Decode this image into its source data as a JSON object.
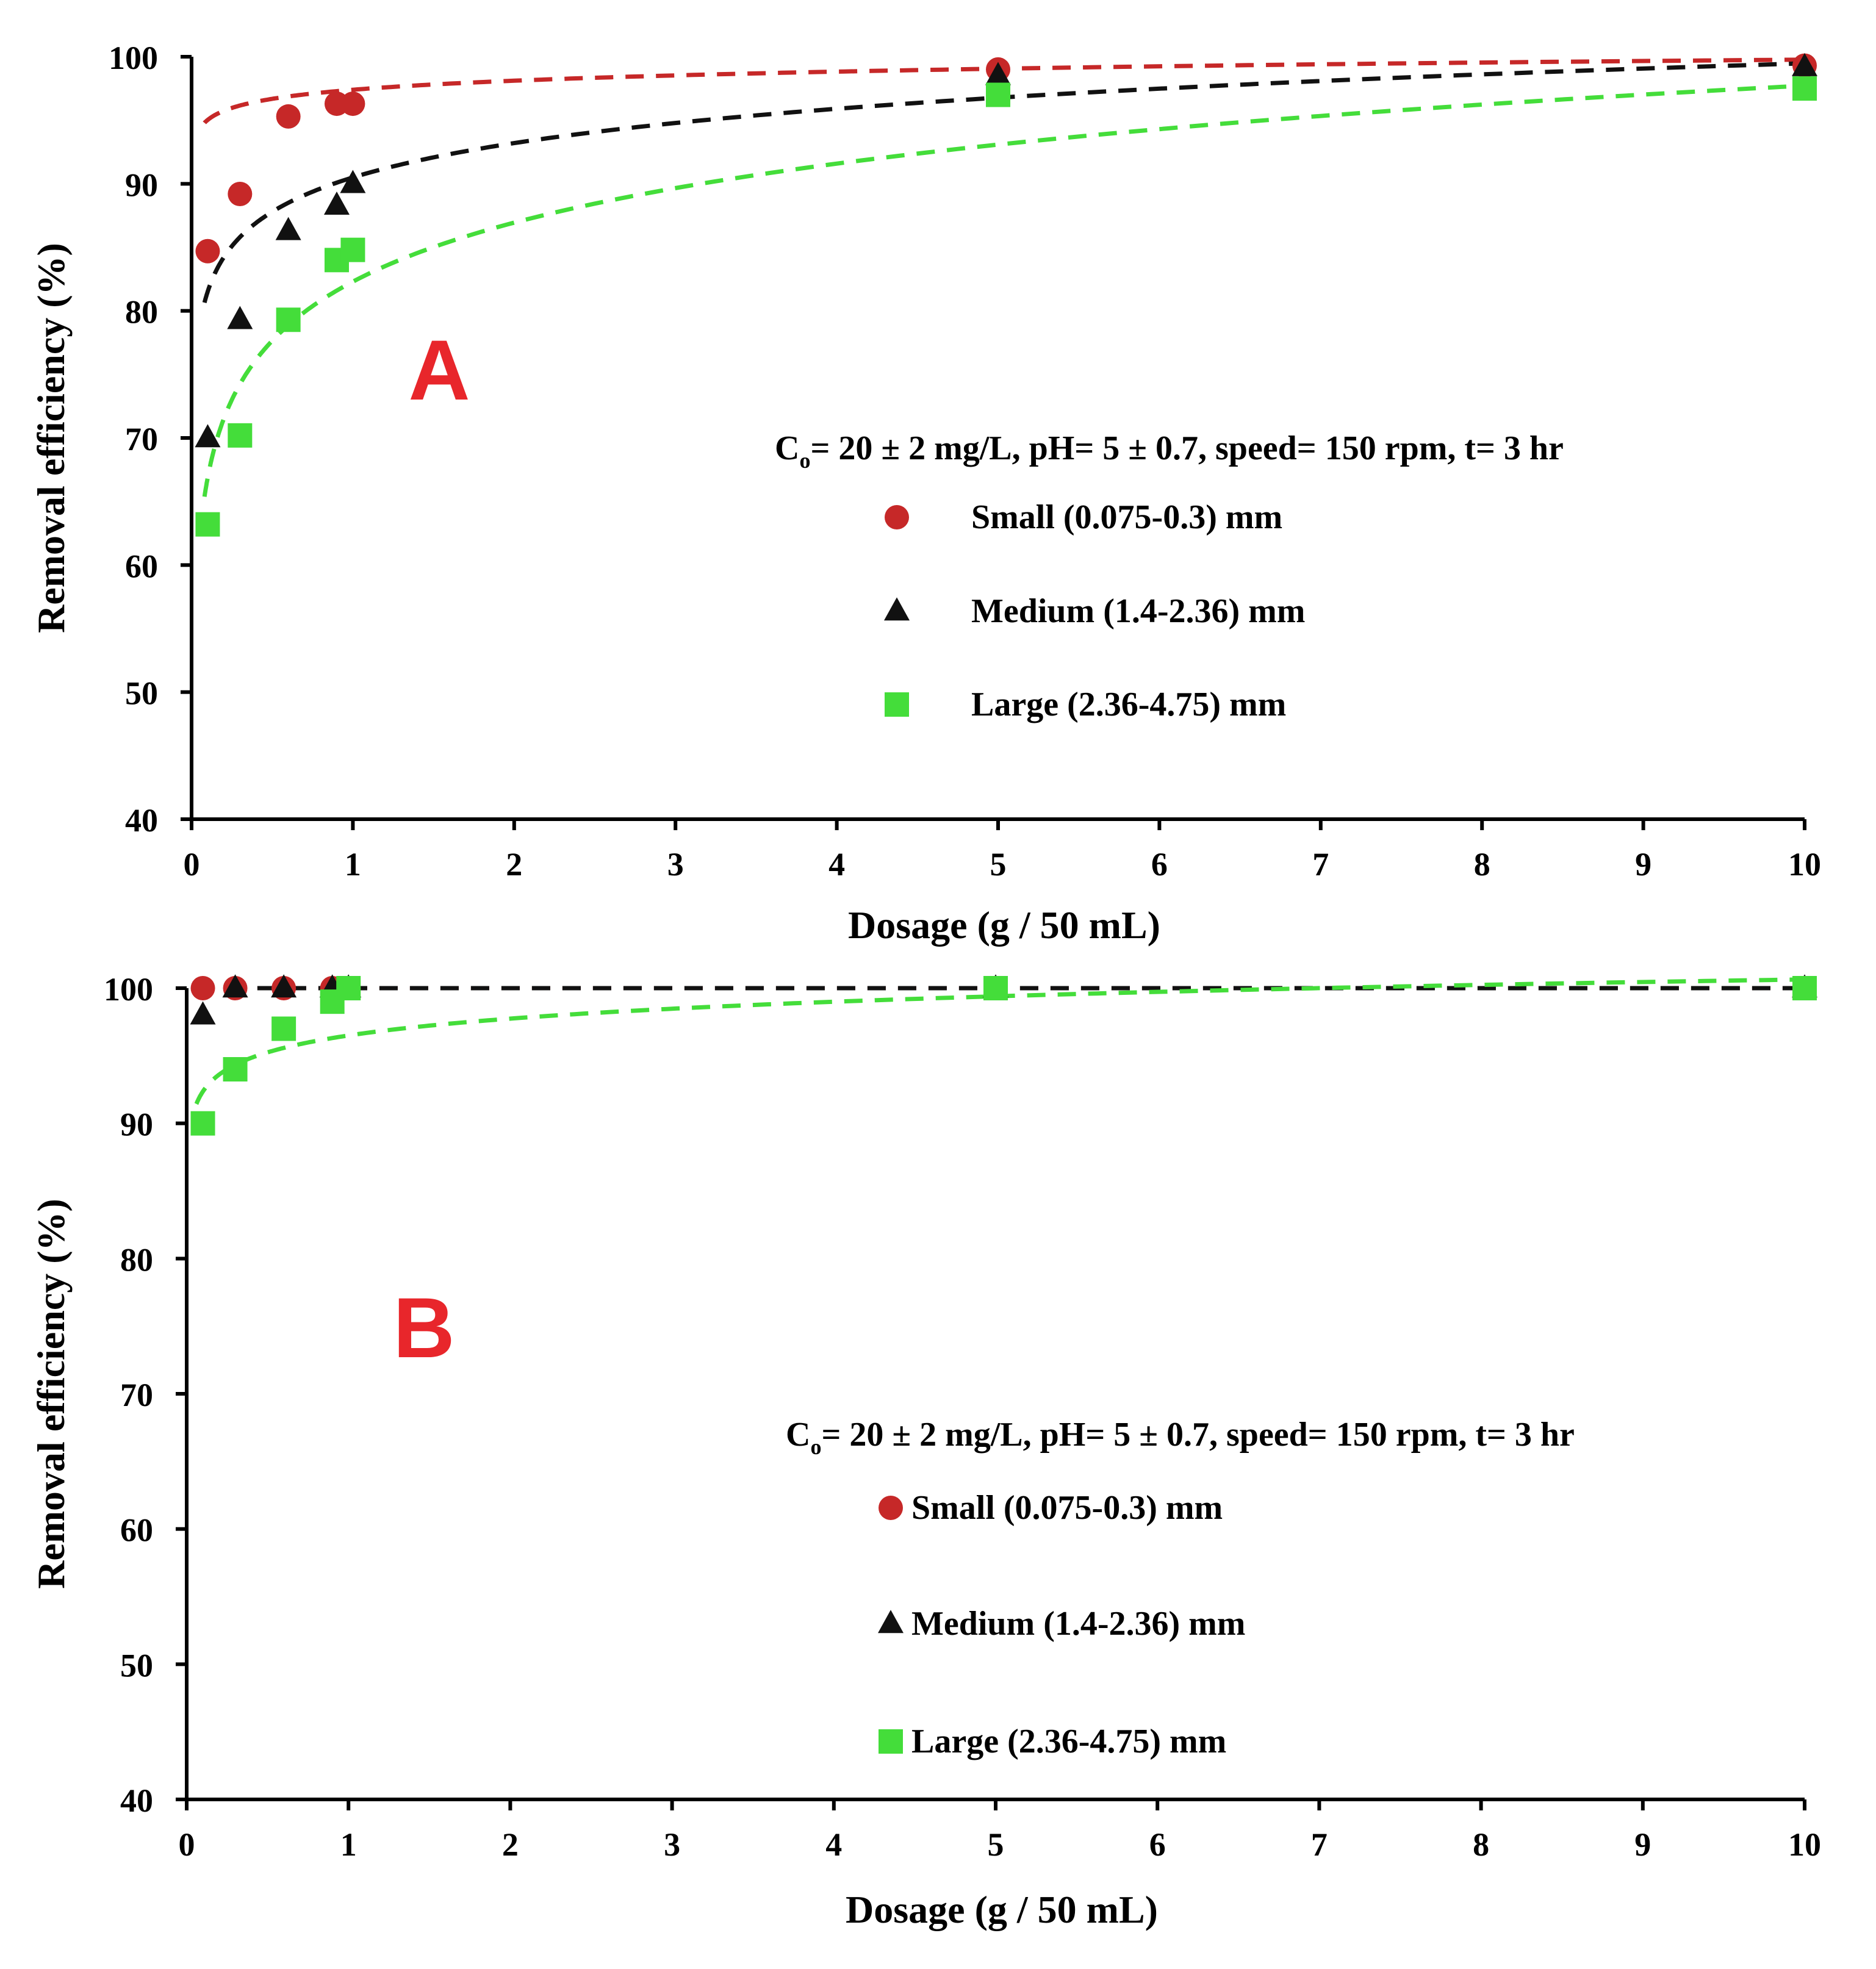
{
  "colors": {
    "small": "#c62828",
    "medium": "#111111",
    "large": "#44dd3a",
    "panel_letter": "#e8262b",
    "axis": "#000000"
  },
  "chart_data": [
    {
      "id": "A",
      "type": "scatter",
      "panel_label": "A",
      "xlabel": "Dosage (g / 50 mL)",
      "ylabel": "Removal efficiency (%)",
      "xlim": [
        0,
        10
      ],
      "ylim": [
        40,
        100
      ],
      "xticks": [
        0,
        1,
        2,
        3,
        4,
        5,
        6,
        7,
        8,
        9,
        10
      ],
      "yticks": [
        40,
        50,
        60,
        70,
        80,
        90,
        100
      ],
      "conditions": {
        "prefix": "C",
        "subscript": "o",
        "rest": "= 20 ± 2 mg/L, pH= 5  ± 0.7, speed= 150 rpm, t= 3 hr"
      },
      "grid": false,
      "legend_layout": "spaced",
      "series": [
        {
          "name": "Small (0.075-0.3) mm",
          "marker": "circle",
          "color_key": "small",
          "x": [
            0.1,
            0.3,
            0.6,
            0.9,
            1.0,
            5,
            10
          ],
          "y": [
            84.7,
            89.2,
            95.3,
            96.3,
            96.3,
            99.0,
            99.3
          ],
          "trend": "log",
          "trend_a": 97.4,
          "trend_b": 1.03
        },
        {
          "name": "Medium (1.4-2.36) mm",
          "marker": "triangle",
          "color_key": "medium",
          "x": [
            0.1,
            0.3,
            0.6,
            0.9,
            1.0,
            5,
            10
          ],
          "y": [
            70.0,
            79.3,
            86.3,
            88.3,
            90.0,
            98.5,
            99.2
          ],
          "trend": "log",
          "trend_a": 90.5,
          "trend_b": 3.9
        },
        {
          "name": "Large (2.36-4.75) mm",
          "marker": "square",
          "color_key": "large",
          "x": [
            0.1,
            0.3,
            0.6,
            0.9,
            1.0,
            5,
            10
          ],
          "y": [
            63.2,
            70.2,
            79.3,
            84.0,
            84.8,
            97.0,
            97.5
          ],
          "trend": "log",
          "trend_a": 82.3,
          "trend_b": 6.7
        }
      ]
    },
    {
      "id": "B",
      "type": "scatter",
      "panel_label": "B",
      "xlabel": "Dosage (g / 50 mL)",
      "ylabel": "Removal efficiency (%)",
      "xlim": [
        0,
        10
      ],
      "ylim": [
        40,
        100
      ],
      "xticks": [
        0,
        1,
        2,
        3,
        4,
        5,
        6,
        7,
        8,
        9,
        10
      ],
      "yticks": [
        40,
        50,
        60,
        70,
        80,
        90,
        100
      ],
      "conditions": {
        "prefix": "C",
        "subscript": "o",
        "rest": "= 20 ± 2 mg/L, pH= 5 ± 0.7, speed= 150 rpm, t= 3 hr"
      },
      "grid": false,
      "legend_layout": "tight",
      "series": [
        {
          "name": "Small (0.075-0.3) mm",
          "marker": "circle",
          "color_key": "small",
          "x": [
            0.1,
            0.3,
            0.6,
            0.9,
            1.0,
            5,
            10
          ],
          "y": [
            100,
            100,
            100,
            100,
            100,
            100,
            100
          ],
          "trend": "flat",
          "trend_a": 100,
          "trend_b": 0
        },
        {
          "name": "Medium (1.4-2.36) mm",
          "marker": "triangle",
          "color_key": "medium",
          "x": [
            0.1,
            0.3,
            0.6,
            0.9,
            1.0,
            5,
            10
          ],
          "y": [
            98.0,
            100,
            100,
            100,
            100,
            100,
            100
          ],
          "trend": "flat",
          "trend_a": 100,
          "trend_b": 0
        },
        {
          "name": "Large (2.36-4.75) mm",
          "marker": "square",
          "color_key": "large",
          "x": [
            0.1,
            0.3,
            0.6,
            0.9,
            1.0,
            5,
            10
          ],
          "y": [
            90.0,
            94.0,
            97.0,
            99.0,
            100,
            100,
            100
          ],
          "trend": "log",
          "trend_a": 96.5,
          "trend_b": 1.8
        }
      ]
    }
  ]
}
